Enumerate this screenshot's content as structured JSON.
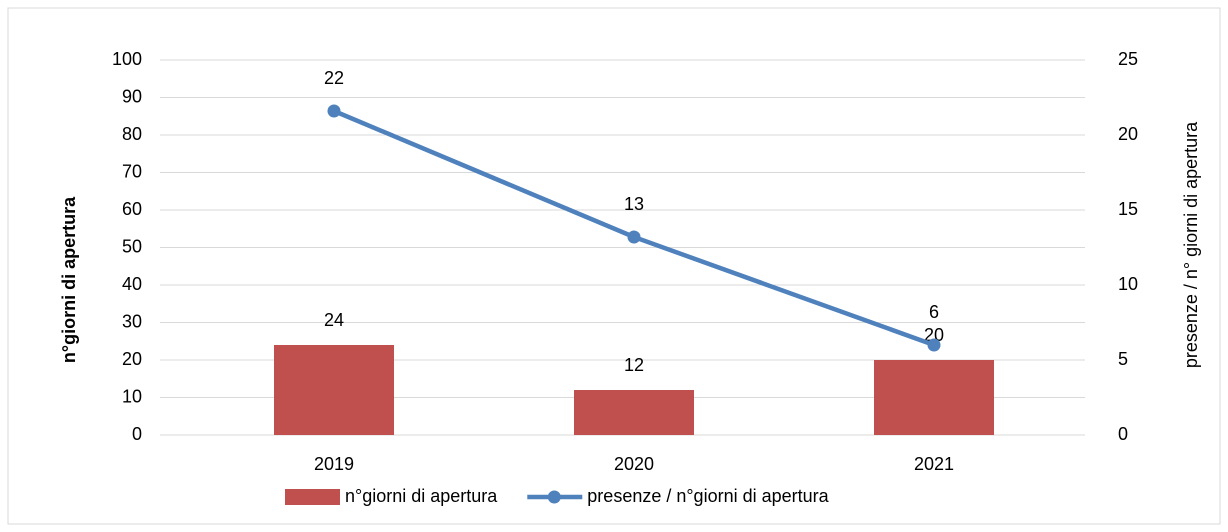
{
  "chart_data": {
    "type": "combo",
    "categories": [
      "2019",
      "2020",
      "2021"
    ],
    "series": [
      {
        "name": "n°giorni di apertura",
        "type": "bar",
        "color": "#c0504d",
        "values": [
          24,
          12,
          20
        ]
      },
      {
        "name": "presenze / n°giorni di apertura",
        "type": "line",
        "axis": "y2",
        "color": "#4f81bd",
        "values": [
          21.6,
          13.2,
          6.0
        ],
        "value_labels": [
          "22",
          "13",
          "6"
        ]
      }
    ],
    "ylabel": "n°giorni di apertura",
    "y2label": "presenze / n° giorni di apertura",
    "ylim": [
      0,
      100
    ],
    "yticks": [
      0,
      10,
      20,
      30,
      40,
      50,
      60,
      70,
      80,
      90,
      100
    ],
    "y2lim": [
      0,
      25
    ],
    "y2ticks": [
      0,
      5,
      10,
      15,
      20,
      25
    ],
    "grid": true,
    "legend": "bottom"
  }
}
